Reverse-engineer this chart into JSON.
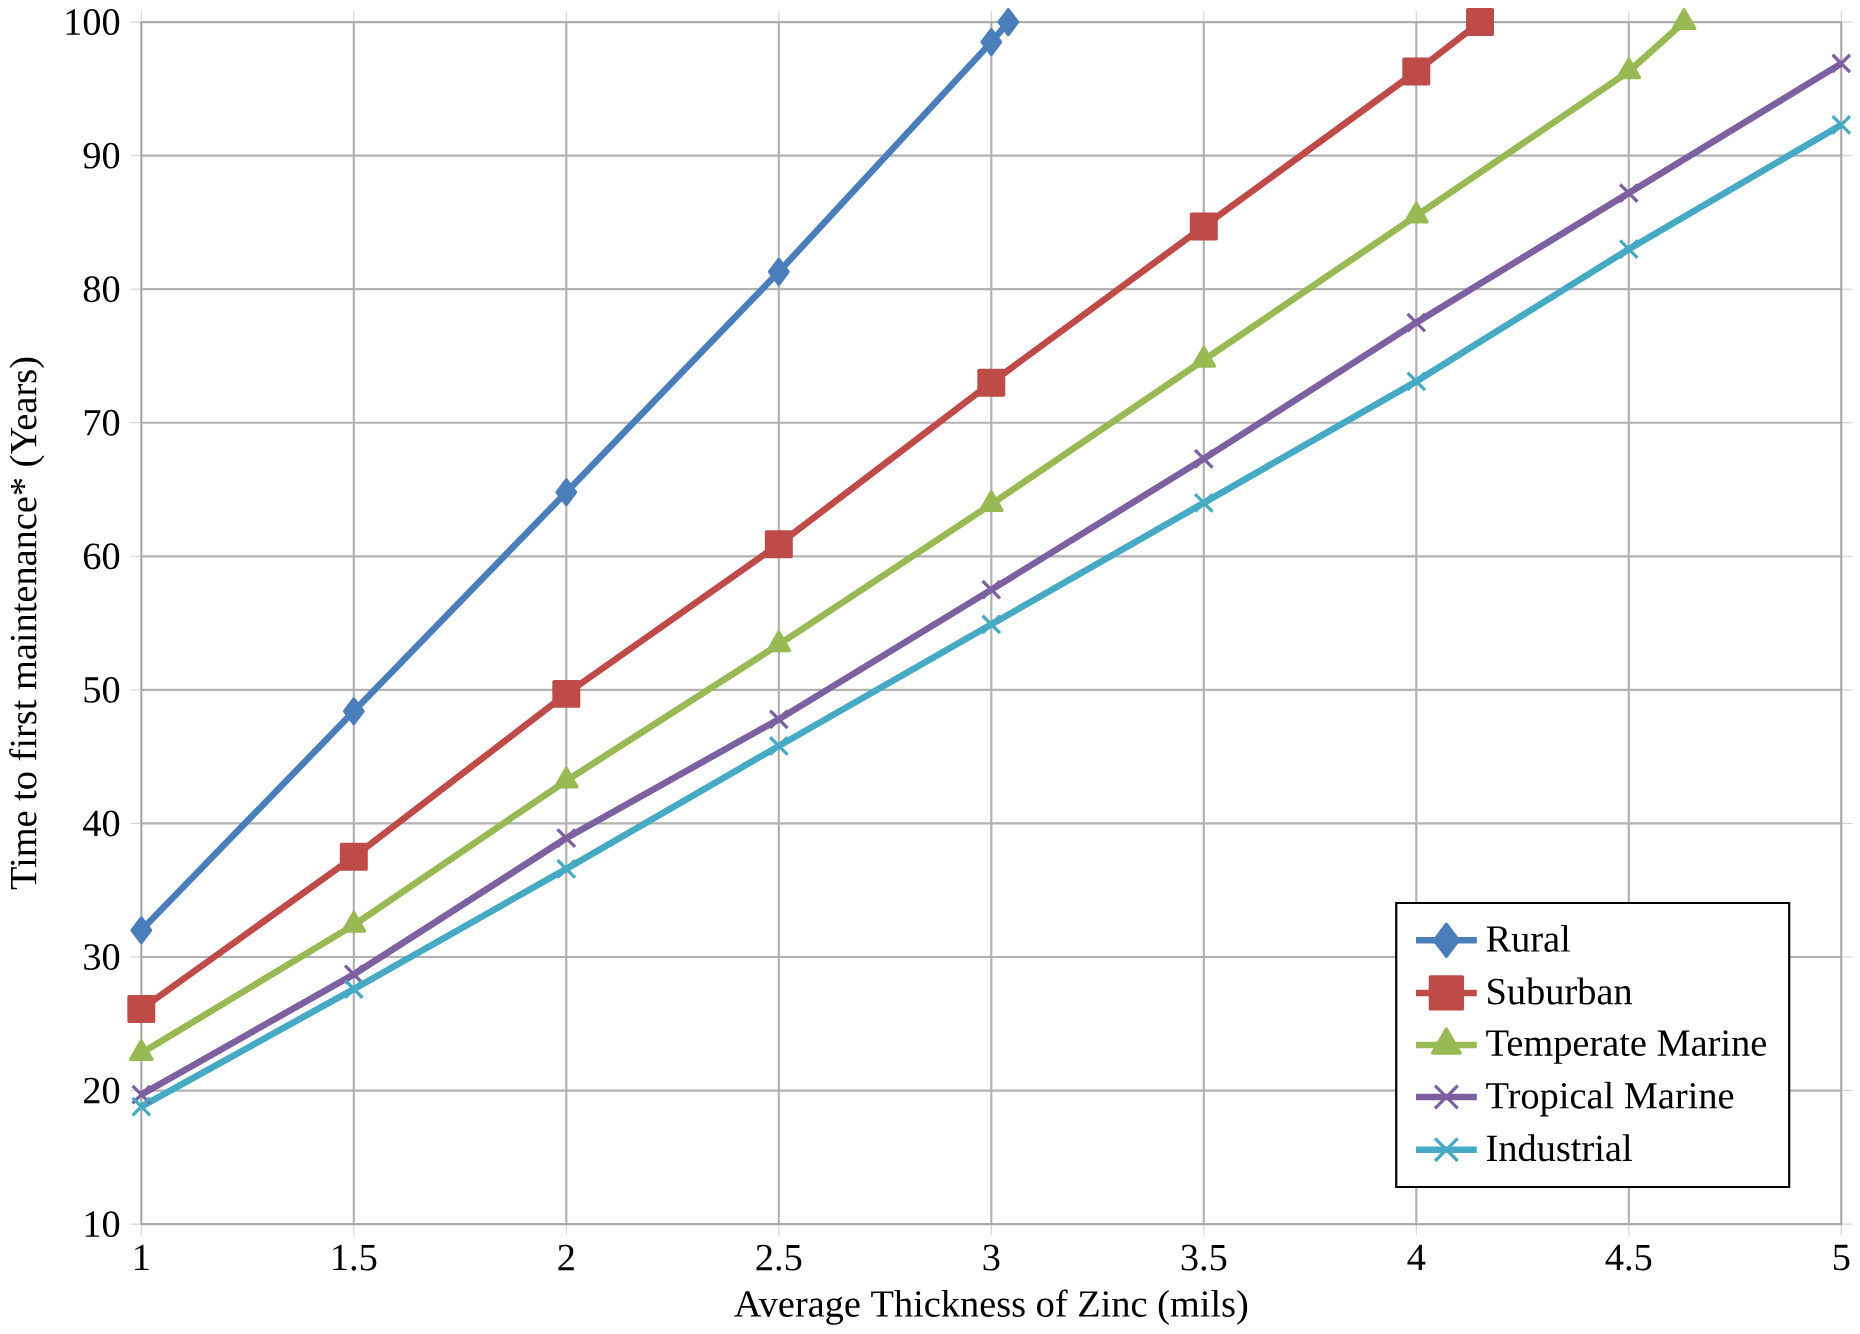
{
  "chart_data": {
    "type": "line",
    "xlabel": "Average Thickness of Zinc (mils)",
    "ylabel": "Time to first maintenance* (Years)",
    "xlim": [
      1,
      5
    ],
    "xticks": [
      1,
      1.5,
      2,
      2.5,
      3,
      3.5,
      4,
      4.5,
      5
    ],
    "ylim": [
      10,
      100
    ],
    "yticks": [
      10,
      20,
      30,
      40,
      50,
      60,
      70,
      80,
      90,
      100
    ],
    "grid": true,
    "legend": "bottom right",
    "series": [
      {
        "name": "Rural",
        "color": "#4a7ebb",
        "marker": "diamond",
        "x": [
          1,
          1.5,
          2,
          2.5,
          3,
          3.04
        ],
        "values": [
          32,
          48.4,
          64.8,
          81.3,
          98.5,
          100
        ]
      },
      {
        "name": "Suburban",
        "color": "#be4b48",
        "marker": "square",
        "x": [
          1,
          1.5,
          2,
          2.5,
          3,
          3.5,
          4,
          4.15
        ],
        "values": [
          26.1,
          37.5,
          49.7,
          60.9,
          73,
          84.7,
          96.3,
          100
        ]
      },
      {
        "name": "Temperate Marine",
        "color": "#98b954",
        "marker": "triangle",
        "x": [
          1,
          1.5,
          2,
          2.5,
          3,
          3.5,
          4,
          4.5,
          4.63
        ],
        "values": [
          22.8,
          32.4,
          43.2,
          53.4,
          63.9,
          74.7,
          85.5,
          96.3,
          100
        ]
      },
      {
        "name": "Tropical Marine",
        "color": "#7d60a0",
        "marker": "cross",
        "x": [
          1,
          1.5,
          2,
          2.5,
          3,
          3.5,
          4,
          4.5,
          5
        ],
        "values": [
          19.7,
          28.7,
          38.9,
          47.8,
          57.5,
          67.3,
          77.5,
          87.2,
          96.9
        ]
      },
      {
        "name": "Industrial",
        "color": "#46aac5",
        "marker": "cross",
        "x": [
          1,
          1.5,
          2,
          2.5,
          3,
          3.5,
          4,
          4.5,
          5
        ],
        "values": [
          18.8,
          27.6,
          36.6,
          45.8,
          54.9,
          64.0,
          73.1,
          83.0,
          92.3
        ]
      }
    ]
  }
}
